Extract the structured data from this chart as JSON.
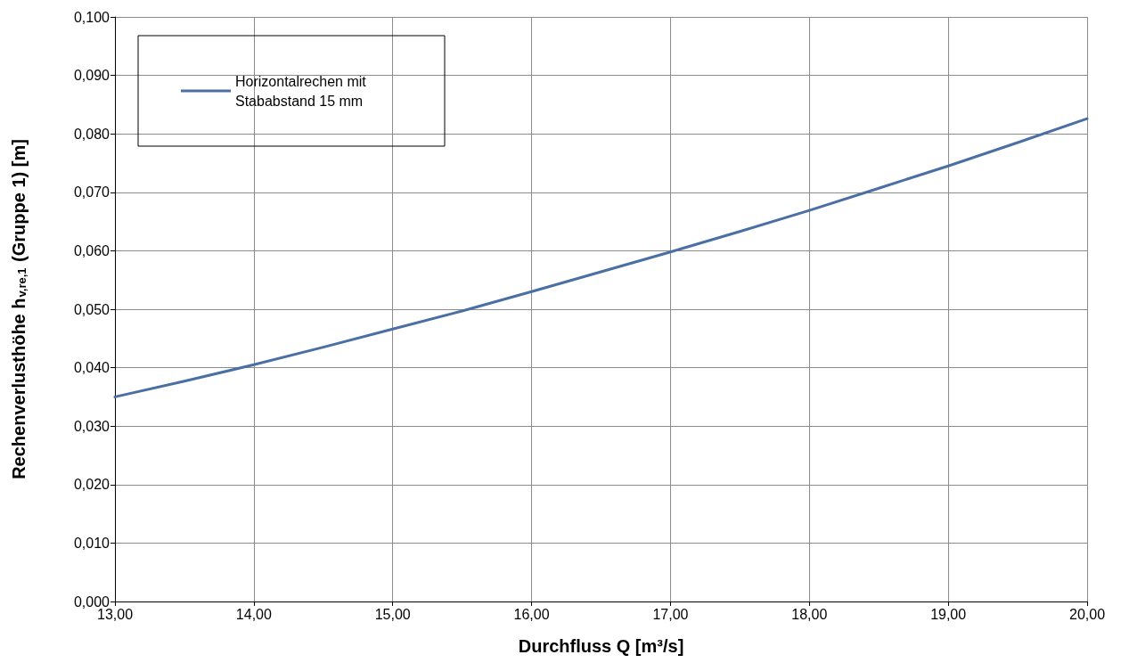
{
  "chart_data": {
    "type": "line",
    "xlabel": "Durchfluss Q [m³/s]",
    "ylabel": "Rechenverlusthöhe h$_{v,re,1}$ (Gruppe 1) [m]",
    "x": [
      13,
      13.5,
      14,
      14.5,
      15,
      15.5,
      16,
      16.5,
      17,
      17.5,
      18,
      18.5,
      19,
      19.5,
      20
    ],
    "series": [
      {
        "name": "Horizontalrechen mit Stababstand 15 mm",
        "color": "#4a6fa5",
        "values": [
          0.035,
          0.0377,
          0.0405,
          0.0435,
          0.0466,
          0.0497,
          0.053,
          0.0564,
          0.0598,
          0.0633,
          0.0669,
          0.0707,
          0.0745,
          0.0785,
          0.0826
        ]
      }
    ],
    "xlim": [
      13,
      20
    ],
    "xticks": [
      {
        "value": 13,
        "label": "13,00"
      },
      {
        "value": 14,
        "label": "14,00"
      },
      {
        "value": 15,
        "label": "15,00"
      },
      {
        "value": 16,
        "label": "16,00"
      },
      {
        "value": 17,
        "label": "17,00"
      },
      {
        "value": 18,
        "label": "18,00"
      },
      {
        "value": 19,
        "label": "19,00"
      },
      {
        "value": 20,
        "label": "20,00"
      }
    ],
    "ylim": [
      0,
      0.1
    ],
    "yticks": [
      {
        "value": 0,
        "label": "0,000"
      },
      {
        "value": 0.01,
        "label": "0,010"
      },
      {
        "value": 0.02,
        "label": "0,020"
      },
      {
        "value": 0.03,
        "label": "0,030"
      },
      {
        "value": 0.04,
        "label": "0,040"
      },
      {
        "value": 0.05,
        "label": "0,050"
      },
      {
        "value": 0.06,
        "label": "0,060"
      },
      {
        "value": 0.07,
        "label": "0,070"
      },
      {
        "value": 0.08,
        "label": "0,080"
      },
      {
        "value": 0.09,
        "label": "0,090"
      },
      {
        "value": 0.1,
        "label": "0,100"
      }
    ],
    "grid": true,
    "legend": "top left",
    "marker": "none",
    "line_style": "solid"
  }
}
